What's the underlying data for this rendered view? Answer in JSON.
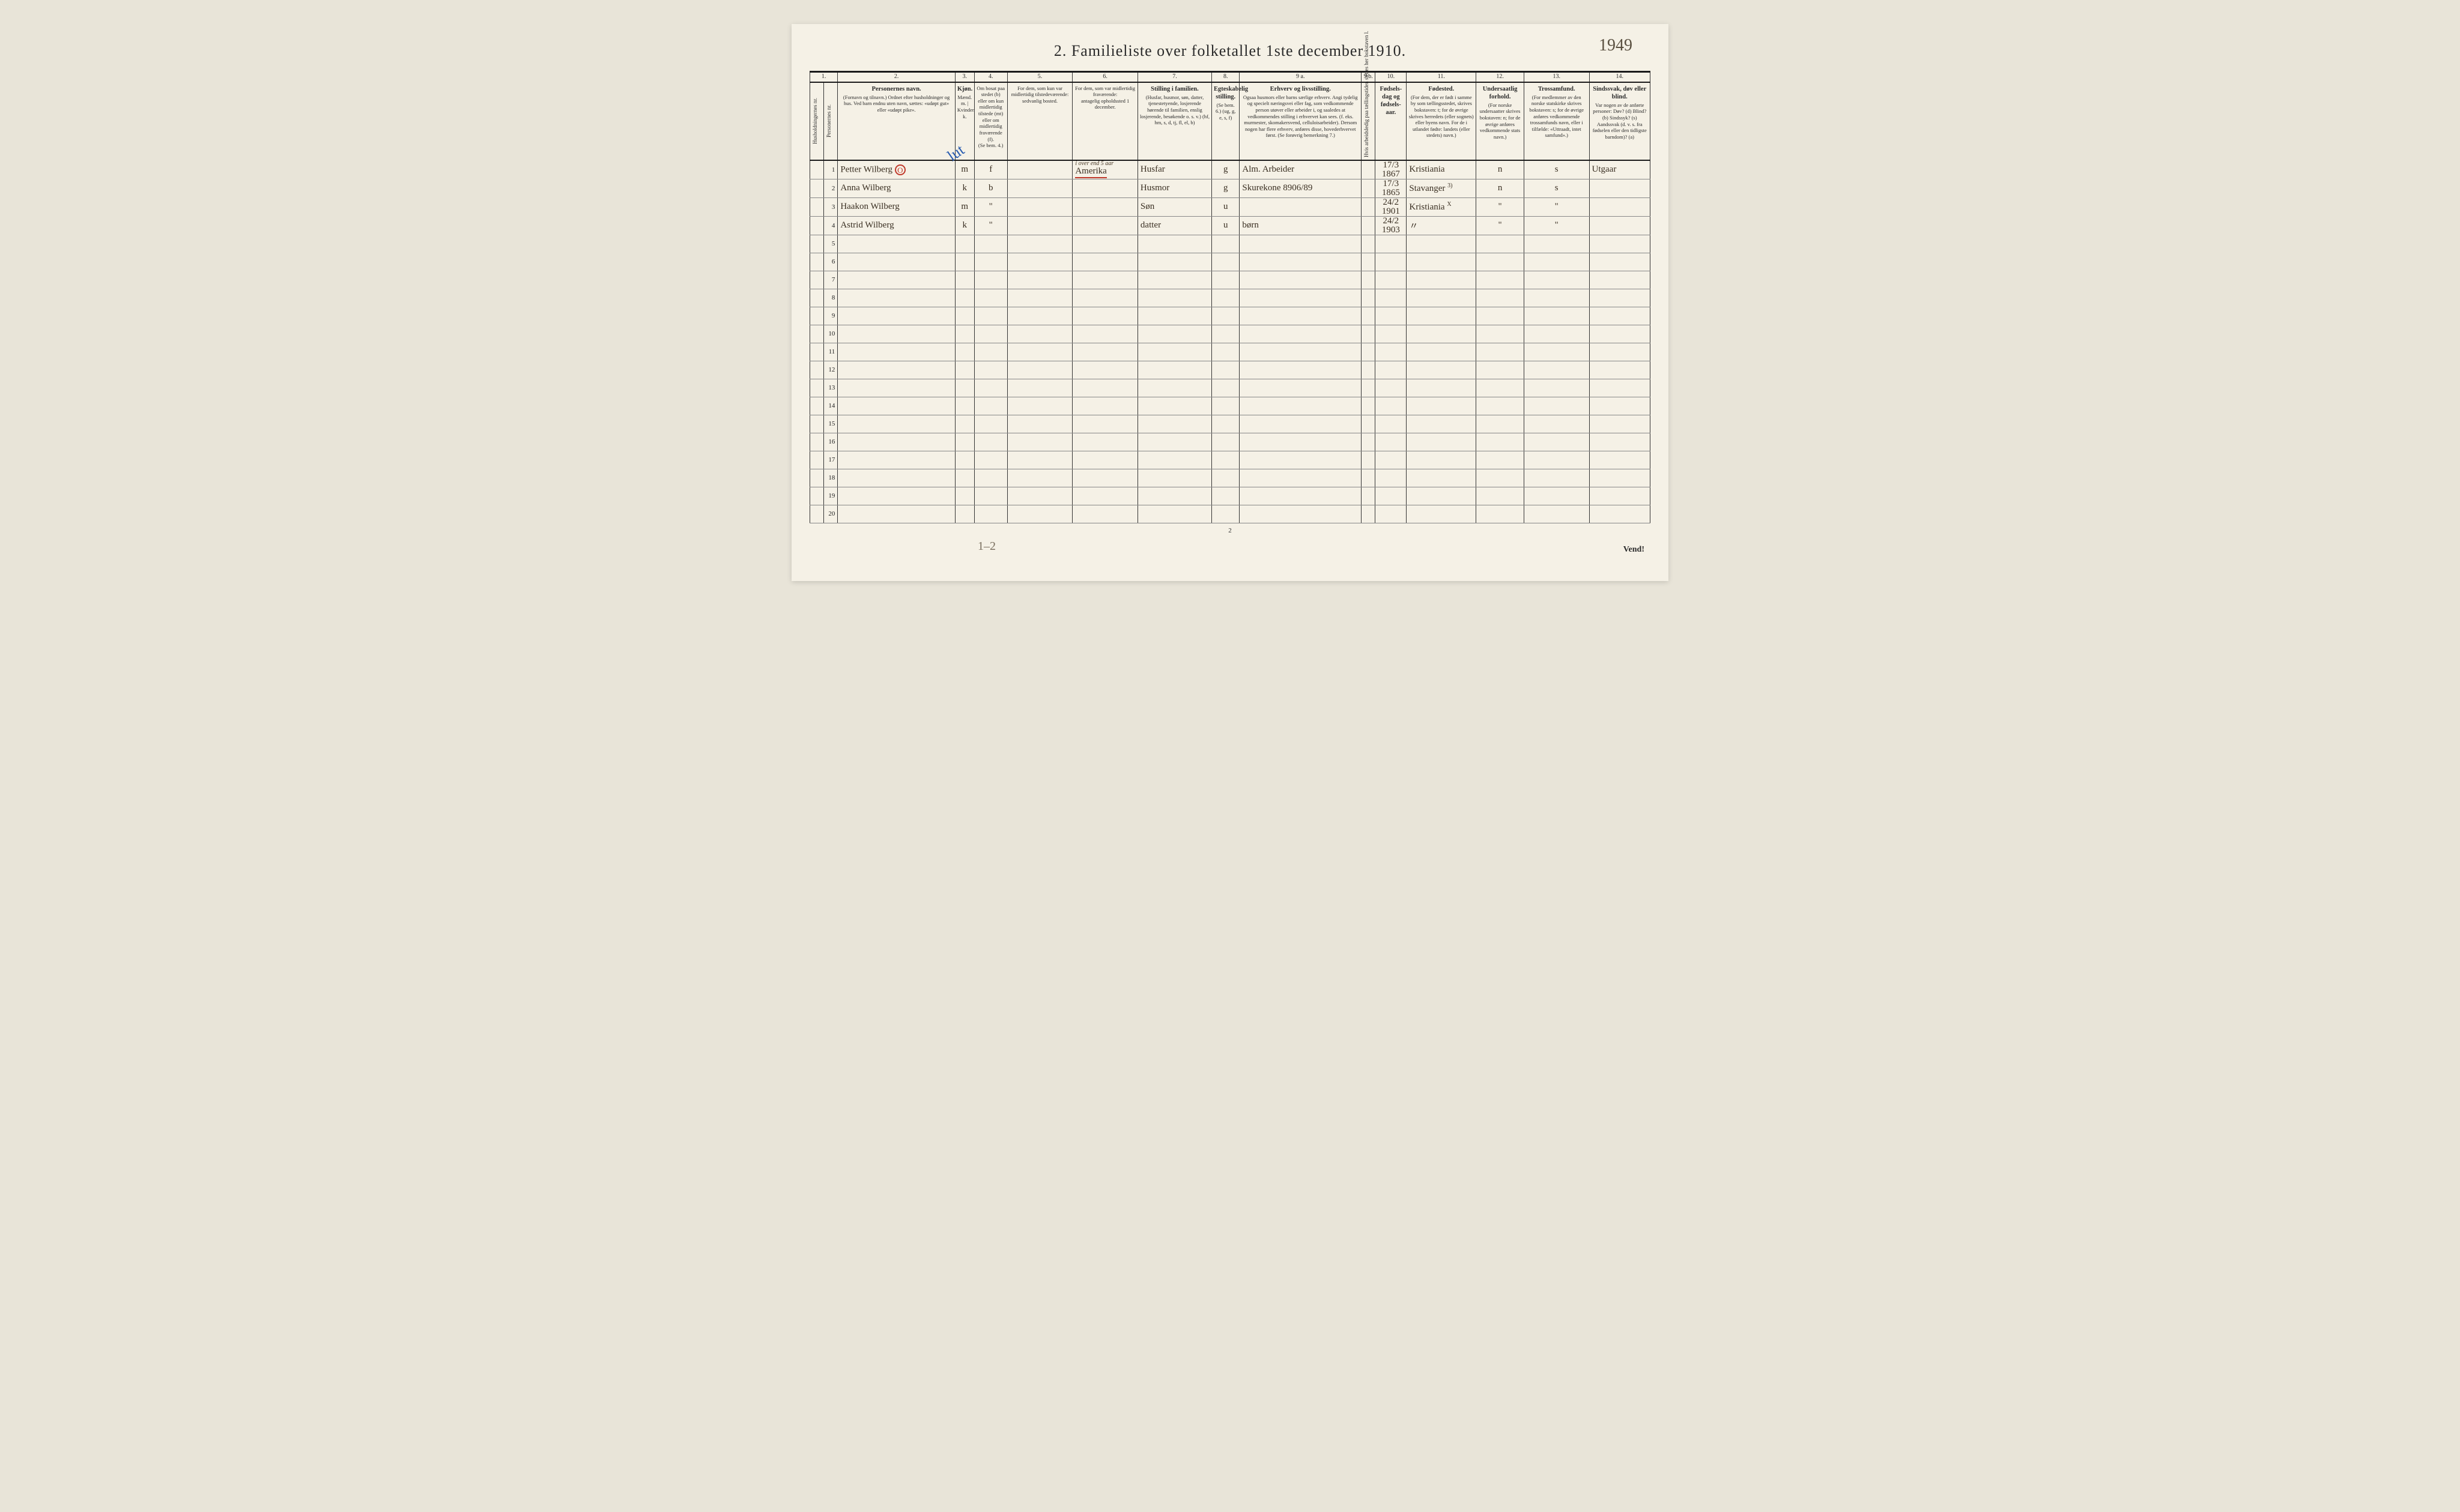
{
  "page": {
    "title": "2.  Familieliste over folketallet 1ste december 1910.",
    "topright_handnote": "1949",
    "bottom_pagenum": "2",
    "vend": "Vend!",
    "pencil_note": "1–2"
  },
  "colnums": [
    "1.",
    "2.",
    "3.",
    "4.",
    "5.",
    "6.",
    "7.",
    "8.",
    "9 a.",
    "9 b.",
    "10.",
    "11.",
    "12.",
    "13.",
    "14."
  ],
  "headers": {
    "hh": "Husholdningernes nr.",
    "pn": "Personernes nr.",
    "name_t": "Personernes navn.",
    "name_s": "(Fornavn og tilnavn.) Ordnet efter husholdninger og hus. Ved barn endnu uten navn, sættes: «udøpt gut» eller «udøpt pike».",
    "sex_t": "Kjøn.",
    "sex_s": "Mænd. m. | Kvinder. k.",
    "res_t": "Om bosat paa stedet (b) eller om kun midlertidig tilstede (mt) eller om midlertidig fraværende (f).",
    "res_s": "(Se bem. 4.)",
    "tempP_t": "For dem, som kun var midlertidig tilstedeværende:",
    "tempP_s": "sedvanlig bosted.",
    "tempA_t": "For dem, som var midlertidig fraværende:",
    "tempA_s": "antagelig opholdssted 1 december.",
    "pos_t": "Stilling i familien.",
    "pos_s": "(Husfar, husmor, søn, datter, tjenestetyende, losjerende hørende til familien, enslig losjerende, besøkende o. s. v.) (hf, hm, s, d, tj, fl, el, b)",
    "mar_t": "Egteskabelig stilling.",
    "mar_s": "(Se bem. 6.) (ug, g, e, s, f)",
    "occ_t": "Erhverv og livsstilling.",
    "occ_s": "Ogsaa husmors eller barns særlige erhverv. Angi tydelig og specielt næringsvei eller fag, som vedkommende person utøver eller arbeider i, og saaledes at vedkommendes stilling i erhvervet kan sees. (f. eks. murmester, skomakersvend, celluloisarbeider). Dersom nogen har flere erhverv, anføres disse, hovederhvervet først. (Se forøvrig bemerkning 7.)",
    "dep": "Hvis arbeidsledig paa tællingstiden sættes her bokstaven l.",
    "dob_t": "Fødsels-dag og fødsels-aar.",
    "bpl_t": "Fødested.",
    "bpl_s": "(For dem, der er født i samme by som tællingsstedet, skrives bokstaven: t; for de øvrige skrives herredets (eller sognets) eller byens navn. For de i utlandet fødte: landets (eller stedets) navn.)",
    "cit_t": "Undersaatlig forhold.",
    "cit_s": "(For norske undersaatter skrives bokstaven: n; for de øvrige anføres vedkommende stats navn.)",
    "rel_t": "Trossamfund.",
    "rel_s": "(For medlemmer av den norske statskirke skrives bokstaven: s; for de øvrige anføres vedkommende trossamfunds navn, eller i tilfælde: «Uttraadt, intet samfund».)",
    "inf_t": "Sindssvak, døv eller blind.",
    "inf_s": "Var nogen av de anførte personer: Døv? (d) Blind? (b) Sindssyk? (s) Aandssvak (d. v. s. fra fødselen eller den tidligste barndom)? (a)"
  },
  "rows": [
    {
      "n": "1",
      "name": "Petter Wilberg",
      "name_mark": "O",
      "sex": "m",
      "res": "f",
      "tempA_above": "i over end 5 aar",
      "tempA": "Amerika",
      "pos": "Husfar",
      "mar": "g",
      "occ": "Alm. Arbeider",
      "dob": "17/3 1867",
      "bpl": "Kristiania",
      "cit": "n",
      "rel": "s",
      "inf": "Utgaar"
    },
    {
      "n": "2",
      "name": "Anna Wilberg",
      "sex": "k",
      "res": "b",
      "pos": "Husmor",
      "mar": "g",
      "occ": "Skurekone   8906/89",
      "dob": "17/3 1865",
      "bpl": "Stavanger",
      "bpl_mark": "3)",
      "cit": "n",
      "rel": "s"
    },
    {
      "n": "3",
      "name": "Haakon Wilberg",
      "sex": "m",
      "res": "\"",
      "pos": "Søn",
      "mar": "u",
      "occ": "",
      "dob": "24/2 1901",
      "bpl": "Kristiania",
      "bpl_mark": "X",
      "cit": "\"",
      "rel": "\""
    },
    {
      "n": "4",
      "name": "Astrid Wilberg",
      "sex": "k",
      "res": "\"",
      "pos": "datter",
      "mar": "u",
      "occ": "børn",
      "dob": "24/2 1903",
      "bpl": "〃",
      "cit": "\"",
      "rel": "\""
    }
  ],
  "emptyRowNums": [
    "5",
    "6",
    "7",
    "8",
    "9",
    "10",
    "11",
    "12",
    "13",
    "14",
    "15",
    "16",
    "17",
    "18",
    "19",
    "20"
  ],
  "bluemark": "lut",
  "colors": {
    "paper": "#f5f1e6",
    "ink": "#2a2a2a",
    "handInk": "#3a2f22",
    "red": "#c0392b",
    "blue": "#2a5db0",
    "pencil": "#7a7060"
  }
}
